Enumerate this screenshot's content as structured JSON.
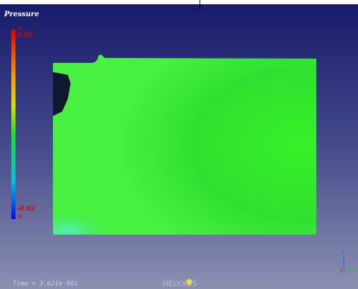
{
  "viewer": {
    "title": "Pressure",
    "legend": {
      "max_marker": ">",
      "max_label": "0.02",
      "min_label": "-0.02",
      "min_marker": "<"
    },
    "time_label": "Time = 3.621e-001",
    "logo": "HELYXOS",
    "axes": {
      "z": "Z",
      "y": "Y",
      "x": "X"
    }
  }
}
